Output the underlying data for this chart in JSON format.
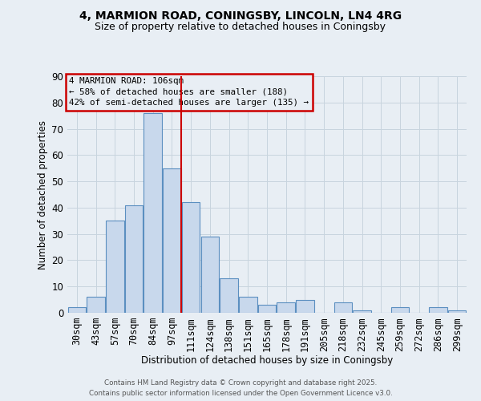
{
  "title_line1": "4, MARMION ROAD, CONINGSBY, LINCOLN, LN4 4RG",
  "title_line2": "Size of property relative to detached houses in Coningsby",
  "xlabel": "Distribution of detached houses by size in Coningsby",
  "ylabel": "Number of detached properties",
  "categories": [
    "30sqm",
    "43sqm",
    "57sqm",
    "70sqm",
    "84sqm",
    "97sqm",
    "111sqm",
    "124sqm",
    "138sqm",
    "151sqm",
    "165sqm",
    "178sqm",
    "191sqm",
    "205sqm",
    "218sqm",
    "232sqm",
    "245sqm",
    "259sqm",
    "272sqm",
    "286sqm",
    "299sqm"
  ],
  "values": [
    2,
    6,
    35,
    41,
    76,
    55,
    42,
    29,
    13,
    6,
    3,
    4,
    5,
    0,
    4,
    1,
    0,
    2,
    0,
    2,
    1
  ],
  "bar_color": "#c8d8ec",
  "bar_edge_color": "#5b8fc0",
  "grid_color": "#c8d4de",
  "bg_color": "#e8eef4",
  "annotation_text": "4 MARMION ROAD: 106sqm\n← 58% of detached houses are smaller (188)\n42% of semi-detached houses are larger (135) →",
  "vline_x": 5.5,
  "vline_color": "#cc0000",
  "ylim_max": 90,
  "yticks": [
    0,
    10,
    20,
    30,
    40,
    50,
    60,
    70,
    80,
    90
  ],
  "footer": "Contains HM Land Registry data © Crown copyright and database right 2025.\nContains public sector information licensed under the Open Government Licence v3.0."
}
